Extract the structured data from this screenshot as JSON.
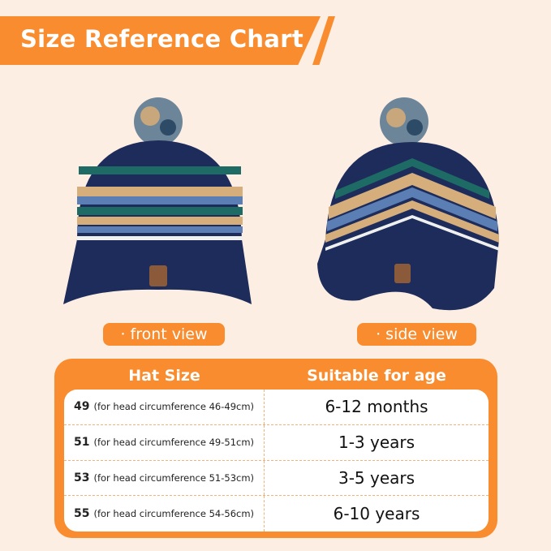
{
  "header": {
    "title": "Size Reference Chart"
  },
  "colors": {
    "accent": "#f98c2e",
    "background": "#fdeee4"
  },
  "views": {
    "front": "· front view",
    "side": "· side view"
  },
  "table": {
    "headers": [
      "Hat Size",
      "Suitable for age"
    ],
    "rows": [
      {
        "size": "49",
        "note": "(for head circumference 46-49cm)",
        "age": "6-12 months"
      },
      {
        "size": "51",
        "note": "(for head circumference 49-51cm)",
        "age": "1-3 years"
      },
      {
        "size": "53",
        "note": "(for head circumference 51-53cm)",
        "age": "3-5 years"
      },
      {
        "size": "55",
        "note": "(for head circumference 54-56cm)",
        "age": "6-10 years"
      }
    ]
  }
}
